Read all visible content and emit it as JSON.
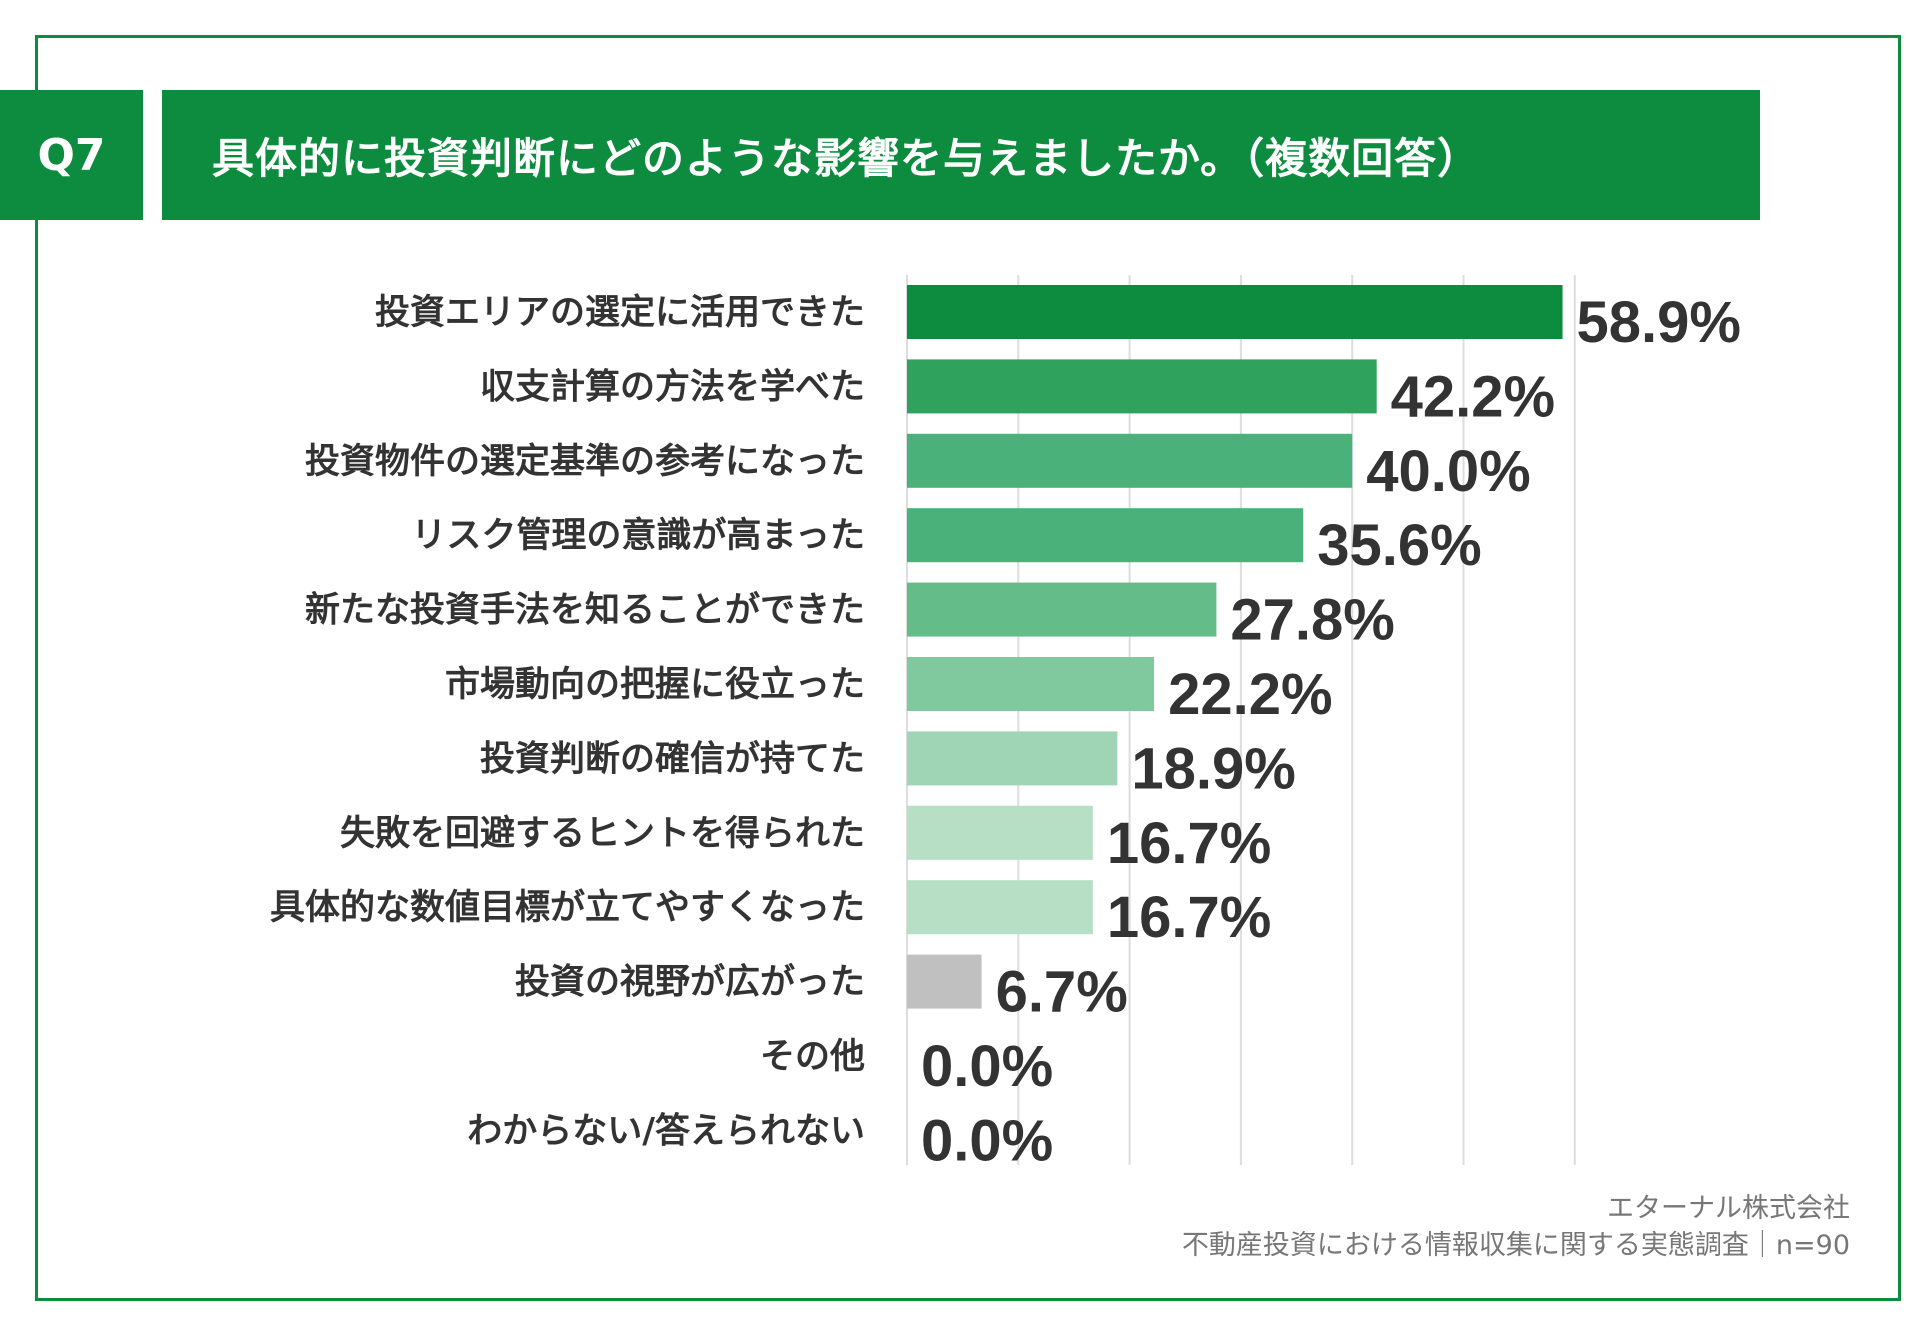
{
  "header": {
    "question_id": "Q7",
    "title": "具体的に投資判断にどのような影響を与えましたか。（複数回答）"
  },
  "footer": {
    "company": "エターナル株式会社",
    "survey": "不動産投資における情報収集に関する実態調査｜n=90"
  },
  "colors": {
    "brand": "#0d8c3f",
    "bar_colors": [
      "#0d8c3f",
      "#2fa35e",
      "#4bb17a",
      "#4bb17a",
      "#64bc89",
      "#80c89e",
      "#9fd5b4",
      "#b6dfc6",
      "#b6dfc6",
      "#c0c0c0",
      "#c0c0c0",
      "#c0c0c0"
    ],
    "text": "#333333",
    "grid": "#dddddd"
  },
  "chart_data": {
    "type": "bar",
    "orientation": "horizontal",
    "title": "具体的に投資判断にどのような影響を与えましたか。（複数回答）",
    "categories": [
      "投資エリアの選定に活用できた",
      "収支計算の方法を学べた",
      "投資物件の選定基準の参考になった",
      "リスク管理の意識が高まった",
      "新たな投資手法を知ることができた",
      "市場動向の把握に役立った",
      "投資判断の確信が持てた",
      "失敗を回避するヒントを得られた",
      "具体的な数値目標が立てやすくなった",
      "投資の視野が広がった",
      "その他",
      "わからない/答えられない"
    ],
    "values": [
      58.9,
      42.2,
      40.0,
      35.6,
      27.8,
      22.2,
      18.9,
      16.7,
      16.7,
      6.7,
      0.0,
      0.0
    ],
    "value_labels": [
      "58.9%",
      "42.2%",
      "40.0%",
      "35.6%",
      "27.8%",
      "22.2%",
      "18.9%",
      "16.7%",
      "16.7%",
      "6.7%",
      "0.0%",
      "0.0%"
    ],
    "unit": "%",
    "xlim": [
      0,
      60
    ],
    "grid_step": 10,
    "grid": true,
    "xlabel": "",
    "ylabel": ""
  }
}
